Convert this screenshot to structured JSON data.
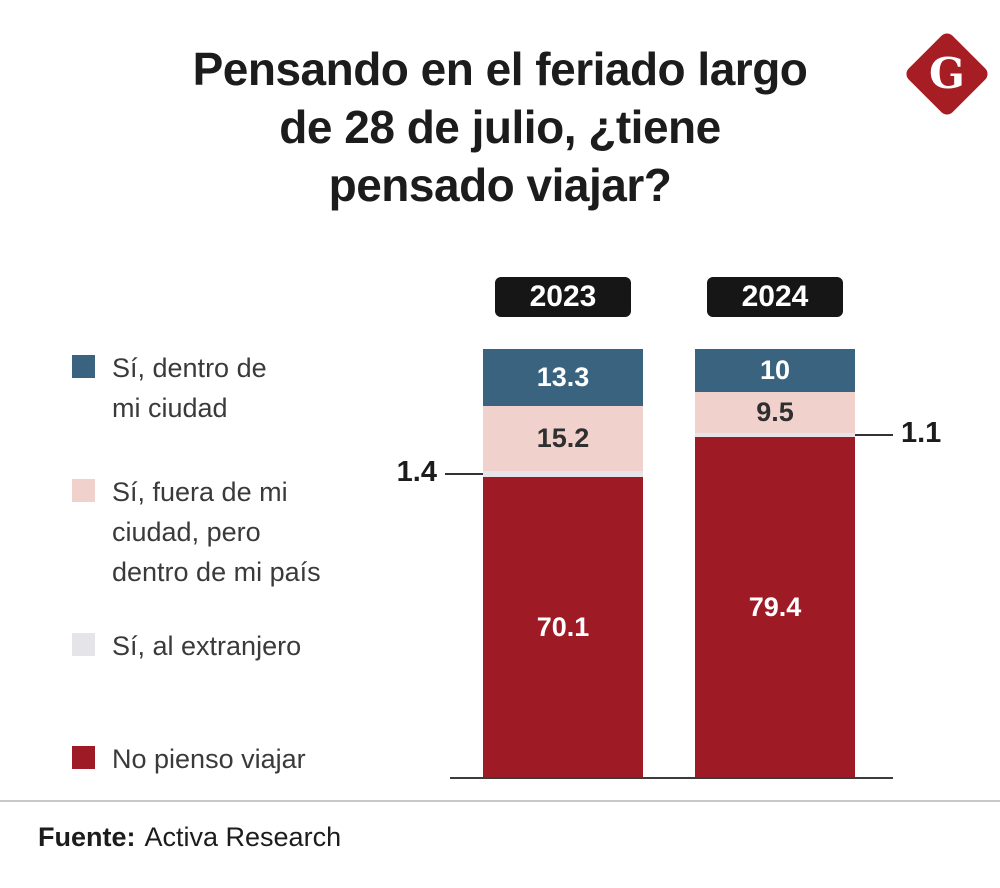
{
  "logo": {
    "letter": "G",
    "color": "#a61e23"
  },
  "title": {
    "lines": [
      "Pensando en el feriado largo",
      "de 28 de julio, ¿tiene",
      "pensado viajar?"
    ]
  },
  "chart_data": {
    "type": "bar",
    "stacked": true,
    "title": "Pensando en el feriado largo de 28 de julio, ¿tiene pensado viajar?",
    "categories": [
      "2023",
      "2024"
    ],
    "series": [
      {
        "name": "Sí, dentro de mi ciudad",
        "color": "#39637f",
        "values": [
          13.3,
          10
        ],
        "labels": [
          "13.3",
          "10"
        ],
        "label_mode": "inline",
        "label_color": "#ffffff"
      },
      {
        "name": "Sí, fuera de mi ciudad, pero dentro de mi país",
        "color": "#f0d1cc",
        "values": [
          15.2,
          9.5
        ],
        "labels": [
          "15.2",
          "9.5"
        ],
        "label_mode": "inline",
        "label_color": "#2f2f2f"
      },
      {
        "name": "Sí, al extranjero",
        "color": "#e4e4e9",
        "values": [
          1.4,
          1.1
        ],
        "labels": [
          "1.4",
          "1.1"
        ],
        "label_mode": "callout",
        "label_color": "#1c1c1c"
      },
      {
        "name": "No pienso viajar",
        "color": "#9e1b26",
        "values": [
          70.1,
          79.4
        ],
        "labels": [
          "70.1",
          "79.4"
        ],
        "label_mode": "inline",
        "label_color": "#ffffff"
      }
    ],
    "callouts": [
      {
        "category_index": 0,
        "series_index": 2,
        "text": "1.4",
        "side": "left"
      },
      {
        "category_index": 1,
        "series_index": 2,
        "text": "1.1",
        "side": "right"
      }
    ],
    "ylim": [
      0,
      100
    ],
    "grid": false,
    "legend_position": "left"
  },
  "legend": {
    "items": [
      {
        "label": "Sí, dentro de\nmi ciudad",
        "color": "#39637f"
      },
      {
        "label": "Sí, fuera de mi\nciudad, pero\ndentro de mi país",
        "color": "#f0d1cc"
      },
      {
        "label": "Sí, al extranjero",
        "color": "#e4e4e9"
      },
      {
        "label": "No pienso viajar",
        "color": "#9e1b26"
      }
    ]
  },
  "footer": {
    "source_label": "Fuente:",
    "source_value": "Activa Research"
  }
}
